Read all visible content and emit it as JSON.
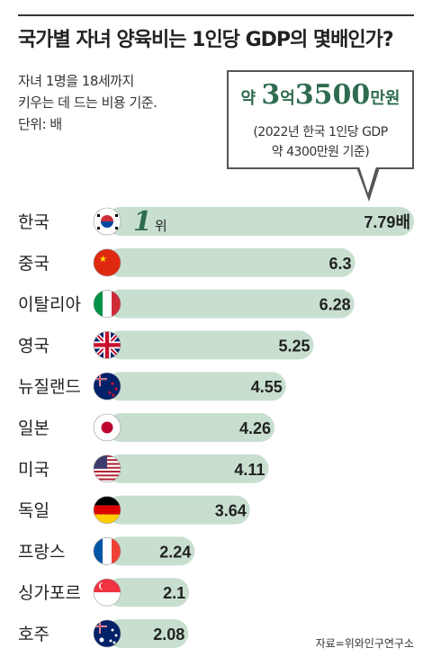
{
  "title": "국가별 자녀 양육비는 1인당 GDP의 몇배인가?",
  "subtitle_lines": [
    "자녀 1명을 18세까지",
    "키우는 데 드는 비용 기준.",
    "단위: 배"
  ],
  "callout": {
    "prefix": "약 ",
    "num1": "3",
    "mid": "억",
    "num2": "3500",
    "suffix": "만원",
    "note_lines": [
      "(2022년 한국 1인당 GDP",
      "약 4300만원 기준)"
    ]
  },
  "rank_label": {
    "number": "1",
    "suffix": "위"
  },
  "source": "자료=위와인구연구소",
  "colors": {
    "bar": "#c8dfd0",
    "callout_text": "#2e6b4f",
    "text": "#222222"
  },
  "chart_data": {
    "type": "bar",
    "orientation": "horizontal",
    "categories": [
      "한국",
      "중국",
      "이탈리아",
      "영국",
      "뉴질랜드",
      "일본",
      "미국",
      "독일",
      "프랑스",
      "싱가포르",
      "호주"
    ],
    "values": [
      7.79,
      6.3,
      6.28,
      5.25,
      4.55,
      4.26,
      4.11,
      3.64,
      2.24,
      2.1,
      2.08
    ],
    "value_labels": [
      "7.79배",
      "6.3",
      "6.28",
      "5.25",
      "4.55",
      "4.26",
      "4.11",
      "3.64",
      "2.24",
      "2.1",
      "2.08"
    ],
    "flags": [
      "south-korea-flag-icon",
      "china-flag-icon",
      "italy-flag-icon",
      "uk-flag-icon",
      "new-zealand-flag-icon",
      "japan-flag-icon",
      "usa-flag-icon",
      "germany-flag-icon",
      "france-flag-icon",
      "singapore-flag-icon",
      "australia-flag-icon"
    ],
    "title": "국가별 자녀 양육비는 1인당 GDP의 몇배인가?",
    "xlabel": "",
    "ylabel": "",
    "grid": false
  }
}
